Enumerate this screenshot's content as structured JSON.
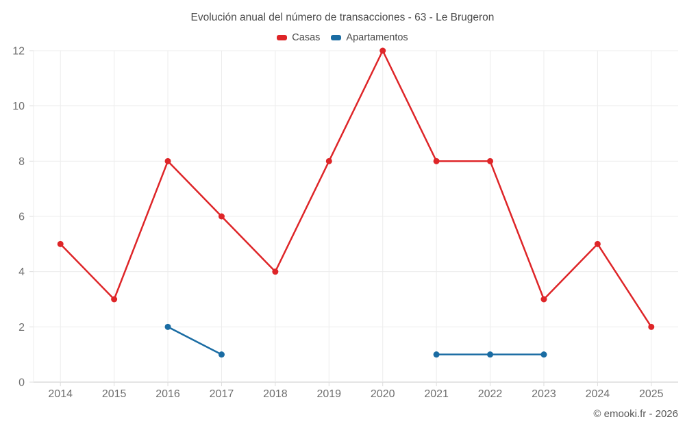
{
  "title": "Evolución anual del número de transacciones - 63 - Le Brugeron",
  "footer": "© emooki.fr - 2026",
  "colors": {
    "casas": "#de2528",
    "apartamentos": "#1a6ca3",
    "grid": "#ececec",
    "axis_line": "#c9c9c9",
    "tick": "#dcdcdc",
    "text": "#6f6f6f"
  },
  "legend": {
    "items": [
      {
        "label": "Casas",
        "color": "#de2528"
      },
      {
        "label": "Apartamentos",
        "color": "#1a6ca3"
      }
    ]
  },
  "chart_data": {
    "type": "line",
    "title": "Evolución anual del número de transacciones - 63 - Le Brugeron",
    "categories": [
      "2014",
      "2015",
      "2016",
      "2017",
      "2018",
      "2019",
      "2020",
      "2021",
      "2022",
      "2023",
      "2024",
      "2025"
    ],
    "series": [
      {
        "name": "Casas",
        "color": "#de2528",
        "values": [
          5,
          3,
          8,
          6,
          4,
          8,
          12,
          8,
          8,
          3,
          5,
          2
        ]
      },
      {
        "name": "Apartamentos",
        "color": "#1a6ca3",
        "values": [
          null,
          null,
          2,
          1,
          null,
          null,
          null,
          1,
          1,
          1,
          null,
          null
        ]
      }
    ],
    "xlabel": "",
    "ylabel": "",
    "ylim": [
      0,
      12
    ],
    "ytick_step": 2,
    "grid": true,
    "legend_position": "top"
  }
}
